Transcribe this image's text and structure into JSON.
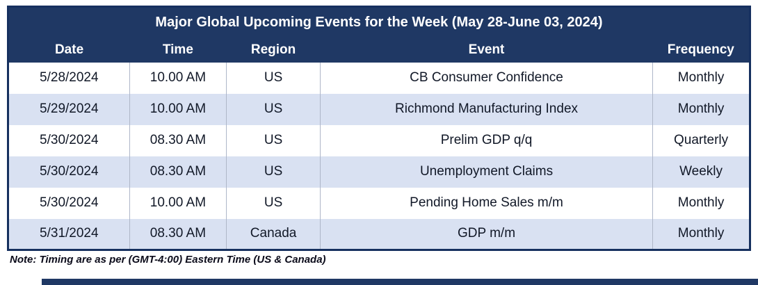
{
  "table": {
    "title": "Major Global Upcoming Events for the Week (May 28-June 03, 2024)",
    "columns": [
      "Date",
      "Time",
      "Region",
      "Event",
      "Frequency"
    ],
    "rows": [
      [
        "5/28/2024",
        "10.00 AM",
        "US",
        "CB Consumer Confidence",
        "Monthly"
      ],
      [
        "5/29/2024",
        "10.00 AM",
        "US",
        "Richmond Manufacturing Index",
        "Monthly"
      ],
      [
        "5/30/2024",
        "08.30 AM",
        "US",
        "Prelim GDP q/q",
        "Quarterly"
      ],
      [
        "5/30/2024",
        "08.30 AM",
        "US",
        "Unemployment Claims",
        "Weekly"
      ],
      [
        "5/30/2024",
        "10.00 AM",
        "US",
        "Pending Home Sales m/m",
        "Monthly"
      ],
      [
        "5/31/2024",
        "08.30 AM",
        "Canada",
        "GDP m/m",
        "Monthly"
      ]
    ],
    "note": "Note: Timing are as per (GMT-4:00) Eastern Time  (US & Canada)"
  },
  "colors": {
    "header_bg": "#1f3864",
    "border": "#16305f",
    "alt_row_bg": "#d9e1f2",
    "header_text": "#ffffff",
    "body_text": "#111827"
  },
  "chart_data": {
    "type": "table",
    "title": "Major Global Upcoming Events for the Week (May 28-June 03, 2024)",
    "columns": [
      "Date",
      "Time",
      "Region",
      "Event",
      "Frequency"
    ],
    "rows": [
      [
        "5/28/2024",
        "10.00 AM",
        "US",
        "CB Consumer Confidence",
        "Monthly"
      ],
      [
        "5/29/2024",
        "10.00 AM",
        "US",
        "Richmond Manufacturing Index",
        "Monthly"
      ],
      [
        "5/30/2024",
        "08.30 AM",
        "US",
        "Prelim GDP q/q",
        "Quarterly"
      ],
      [
        "5/30/2024",
        "08.30 AM",
        "US",
        "Unemployment Claims",
        "Weekly"
      ],
      [
        "5/30/2024",
        "10.00 AM",
        "US",
        "Pending Home Sales m/m",
        "Monthly"
      ],
      [
        "5/31/2024",
        "08.30 AM",
        "Canada",
        "GDP m/m",
        "Monthly"
      ]
    ],
    "note": "Note: Timing are as per (GMT-4:00) Eastern Time  (US & Canada)"
  }
}
